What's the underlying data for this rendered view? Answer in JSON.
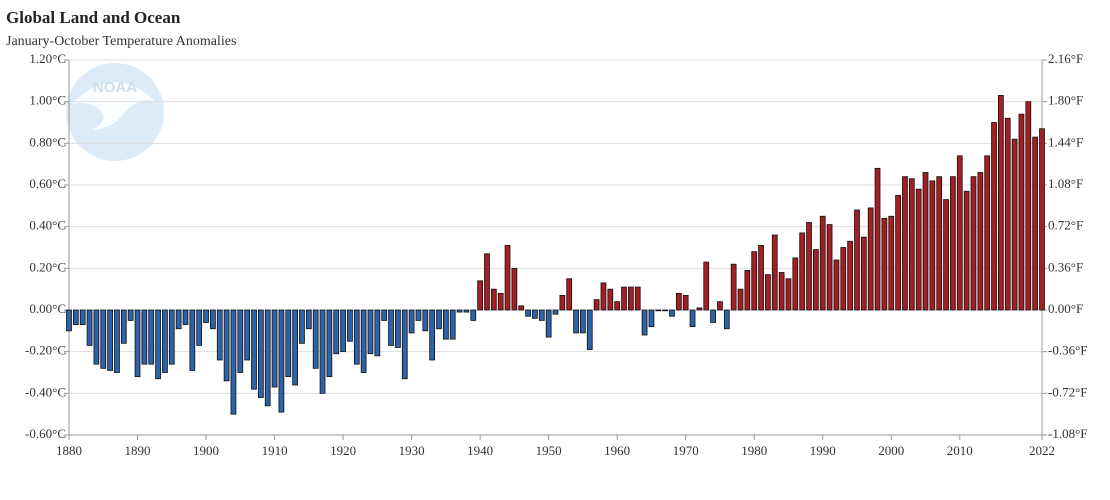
{
  "chart_data": {
    "type": "bar",
    "title": "Global Land and Ocean",
    "subtitle": "January-October Temperature Anomalies",
    "logo_text": "NOAA",
    "x": [
      1880,
      1881,
      1882,
      1883,
      1884,
      1885,
      1886,
      1887,
      1888,
      1889,
      1890,
      1891,
      1892,
      1893,
      1894,
      1895,
      1896,
      1897,
      1898,
      1899,
      1900,
      1901,
      1902,
      1903,
      1904,
      1905,
      1906,
      1907,
      1908,
      1909,
      1910,
      1911,
      1912,
      1913,
      1914,
      1915,
      1916,
      1917,
      1918,
      1919,
      1920,
      1921,
      1922,
      1923,
      1924,
      1925,
      1926,
      1927,
      1928,
      1929,
      1930,
      1931,
      1932,
      1933,
      1934,
      1935,
      1936,
      1937,
      1938,
      1939,
      1940,
      1941,
      1942,
      1943,
      1944,
      1945,
      1946,
      1947,
      1948,
      1949,
      1950,
      1951,
      1952,
      1953,
      1954,
      1955,
      1956,
      1957,
      1958,
      1959,
      1960,
      1961,
      1962,
      1963,
      1964,
      1965,
      1966,
      1967,
      1968,
      1969,
      1970,
      1971,
      1972,
      1973,
      1974,
      1975,
      1976,
      1977,
      1978,
      1979,
      1980,
      1981,
      1982,
      1983,
      1984,
      1985,
      1986,
      1987,
      1988,
      1989,
      1990,
      1991,
      1992,
      1993,
      1994,
      1995,
      1996,
      1997,
      1998,
      1999,
      2000,
      2001,
      2002,
      2003,
      2004,
      2005,
      2006,
      2007,
      2008,
      2009,
      2010,
      2011,
      2012,
      2013,
      2014,
      2015,
      2016,
      2017,
      2018,
      2019,
      2020,
      2021,
      2022
    ],
    "values": [
      -0.1,
      -0.07,
      -0.07,
      -0.17,
      -0.26,
      -0.28,
      -0.29,
      -0.3,
      -0.16,
      -0.05,
      -0.32,
      -0.26,
      -0.26,
      -0.33,
      -0.3,
      -0.26,
      -0.09,
      -0.07,
      -0.29,
      -0.17,
      -0.06,
      -0.09,
      -0.24,
      -0.34,
      -0.5,
      -0.3,
      -0.24,
      -0.38,
      -0.42,
      -0.46,
      -0.37,
      -0.49,
      -0.32,
      -0.36,
      -0.16,
      -0.09,
      -0.28,
      -0.4,
      -0.32,
      -0.21,
      -0.2,
      -0.15,
      -0.26,
      -0.3,
      -0.21,
      -0.22,
      -0.05,
      -0.17,
      -0.18,
      -0.33,
      -0.11,
      -0.05,
      -0.1,
      -0.24,
      -0.09,
      -0.14,
      -0.14,
      -0.01,
      -0.01,
      -0.05,
      0.14,
      0.27,
      0.1,
      0.08,
      0.31,
      0.2,
      0.02,
      -0.03,
      -0.04,
      -0.05,
      -0.13,
      -0.02,
      0.07,
      0.15,
      -0.11,
      -0.11,
      -0.19,
      0.05,
      0.13,
      0.1,
      0.04,
      0.11,
      0.11,
      0.11,
      -0.12,
      -0.08,
      0.0,
      0.0,
      -0.03,
      0.08,
      0.07,
      -0.08,
      0.01,
      0.23,
      -0.06,
      0.04,
      -0.09,
      0.22,
      0.1,
      0.19,
      0.28,
      0.31,
      0.17,
      0.36,
      0.18,
      0.15,
      0.25,
      0.37,
      0.42,
      0.29,
      0.45,
      0.41,
      0.24,
      0.3,
      0.33,
      0.48,
      0.35,
      0.49,
      0.68,
      0.44,
      0.45,
      0.55,
      0.64,
      0.63,
      0.58,
      0.66,
      0.62,
      0.64,
      0.53,
      0.64,
      0.74,
      0.57,
      0.64,
      0.66,
      0.74,
      0.9,
      1.03,
      0.92,
      0.82,
      0.94,
      1.0,
      0.83,
      0.87
    ],
    "positive_color": "#a51e24",
    "negative_color": "#2e63a8",
    "xlim": [
      1880,
      2022
    ],
    "xticks": [
      1880,
      1890,
      1900,
      1910,
      1920,
      1930,
      1940,
      1950,
      1960,
      1970,
      1980,
      1990,
      2000,
      2010,
      2022
    ],
    "ylim": [
      -0.6,
      1.2
    ],
    "yticks": [
      {
        "value": -0.6,
        "label": "-0.60°C"
      },
      {
        "value": -0.4,
        "label": "-0.40°C"
      },
      {
        "value": -0.2,
        "label": "-0.20°C"
      },
      {
        "value": 0,
        "label": "0.00°C"
      },
      {
        "value": 0.2,
        "label": "0.20°C"
      },
      {
        "value": 0.4,
        "label": "0.40°C"
      },
      {
        "value": 0.6,
        "label": "0.60°C"
      },
      {
        "value": 0.8,
        "label": "0.80°C"
      },
      {
        "value": 1.0,
        "label": "1.00°C"
      },
      {
        "value": 1.2,
        "label": "1.20°C"
      }
    ],
    "y2lim": [
      -1.08,
      2.16
    ],
    "y2ticks": [
      {
        "value": -1.08,
        "label": "-1.08°F"
      },
      {
        "value": -0.72,
        "label": "-0.72°F"
      },
      {
        "value": -0.36,
        "label": "-0.36°F"
      },
      {
        "value": 0,
        "label": "0.00°F"
      },
      {
        "value": 0.36,
        "label": "0.36°F"
      },
      {
        "value": 0.72,
        "label": "0.72°F"
      },
      {
        "value": 1.08,
        "label": "1.08°F"
      },
      {
        "value": 1.44,
        "label": "1.44°F"
      },
      {
        "value": 1.8,
        "label": "1.80°F"
      },
      {
        "value": 2.16,
        "label": "2.16°F"
      }
    ],
    "grid": true
  }
}
